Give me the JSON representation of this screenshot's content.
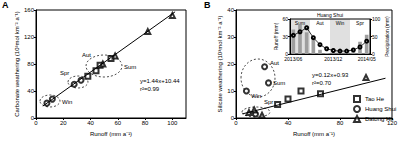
{
  "chart_data": [
    {
      "type": "scatter",
      "panel": "A",
      "xlabel": "Runoff (mm a⁻¹)",
      "ylabel": "Carbonate weathering (10³mol km⁻² a⁻¹)",
      "xlim": [
        0,
        110
      ],
      "xticks": [
        0,
        20,
        40,
        60,
        80,
        100
      ],
      "ylim": [
        0,
        160
      ],
      "yticks": [
        0,
        40,
        80,
        120,
        160
      ],
      "grid": false,
      "series": [
        {
          "name": "Tao He",
          "color": "#000000",
          "marker": "square",
          "x": [
            38,
            44,
            47,
            55
          ],
          "values": [
            62,
            70,
            78,
            88
          ]
        },
        {
          "name": "Huang Shui",
          "color": "#000000",
          "marker": "circle",
          "x": [
            8,
            12,
            28,
            33
          ],
          "values": [
            22,
            28,
            50,
            56
          ]
        },
        {
          "name": "Datong He",
          "color": "#000000",
          "marker": "triangle",
          "x": [
            100,
            82,
            58,
            49
          ],
          "values": [
            152,
            128,
            92,
            80
          ]
        }
      ],
      "trend": {
        "x": [
          5,
          102
        ],
        "values": [
          17.64,
          157.32
        ]
      },
      "annotations": [
        "y=1.44x+10.44",
        "r²=0.99",
        "Win",
        "Spr",
        "Aut",
        "Sum"
      ]
    },
    {
      "type": "scatter",
      "panel": "B",
      "xlabel": "Runoff (mm a⁻¹)",
      "ylabel": "Silicate weathering (10³mol km⁻² a⁻¹)",
      "xlim": [
        0,
        120
      ],
      "xticks": [
        0,
        40,
        80,
        120
      ],
      "ylim": [
        0,
        40
      ],
      "yticks": [
        0,
        10,
        20,
        30,
        40
      ],
      "grid": false,
      "legend": "lower right",
      "series": [
        {
          "name": "Tao He",
          "color": "#000000",
          "marker": "square",
          "x": [
            32,
            40,
            50,
            65
          ],
          "values": [
            5,
            7,
            10,
            9
          ]
        },
        {
          "name": "Huang Shui",
          "color": "#000000",
          "marker": "circle",
          "x": [
            8,
            22,
            25,
            15
          ],
          "values": [
            10,
            19,
            13,
            1.5
          ]
        },
        {
          "name": "Datong He",
          "color": "#000000",
          "marker": "triangle",
          "x": [
            10,
            14,
            20,
            100
          ],
          "values": [
            2,
            3,
            1,
            15
          ]
        }
      ],
      "trend": {
        "x": [
          5,
          115
        ],
        "values": [
          1.53,
          14.73
        ]
      },
      "annotations": [
        "y=0.12x+0.93",
        "r²=0.70",
        "Win",
        "Spr",
        "Aut",
        "Sum"
      ]
    },
    {
      "type": "bar_line",
      "title": "Huang Shui",
      "x": [
        "2013/06",
        null,
        null,
        null,
        null,
        null,
        "2013/12",
        null,
        null,
        null,
        null,
        "2014/05"
      ],
      "ylabel": "Runoff (mm)",
      "ylim": [
        0,
        60
      ],
      "yticks": [
        0,
        30,
        60
      ],
      "y2label": "Precipitation (mm)",
      "y2lim": [
        0,
        100
      ],
      "y2ticks": [
        0,
        50,
        100
      ],
      "series": [
        {
          "type": "bar",
          "axis": "y2",
          "color": "#9e9e9e",
          "values": [
            70,
            85,
            62,
            42,
            12,
            3,
            1,
            2,
            4,
            12,
            35,
            55
          ]
        },
        {
          "type": "line",
          "color": "#000000",
          "marker": "circle",
          "values": [
            32,
            38,
            45,
            28,
            16,
            9,
            6,
            5,
            5,
            7,
            12,
            22
          ]
        }
      ],
      "seasons": [
        {
          "label": "Sum",
          "from": 0,
          "to": 2
        },
        {
          "label": "Aut",
          "from": 3,
          "to": 5
        },
        {
          "label": "Win",
          "from": 6,
          "to": 8
        },
        {
          "label": "Spr",
          "from": 9,
          "to": 11
        }
      ]
    }
  ]
}
